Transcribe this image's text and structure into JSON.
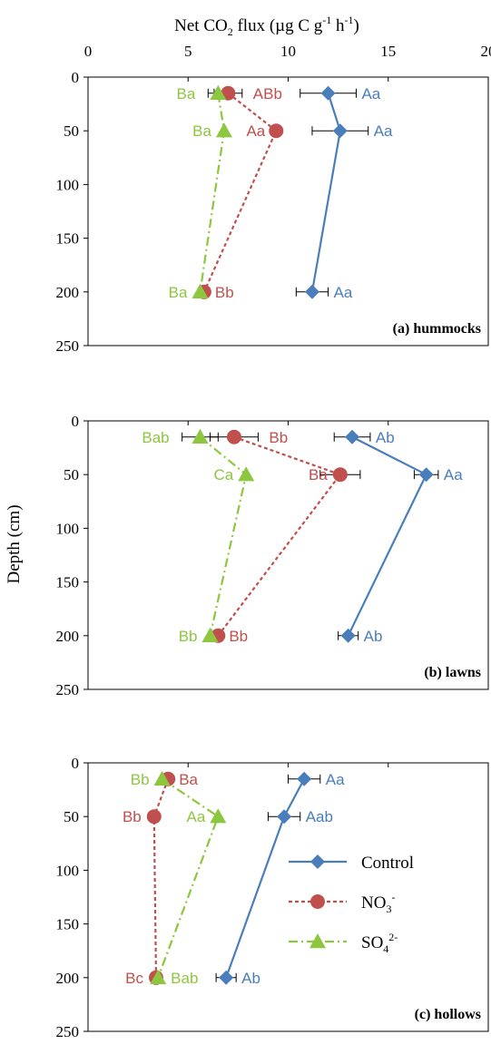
{
  "chart_data": {
    "type": "line",
    "x_axis": {
      "title_text": "Net CO",
      "title_sub": "2",
      "title_mid": " flux (µg C g",
      "title_sup1": "-1",
      "title_mid2": " h",
      "title_sup2": "-1",
      "title_end": ")",
      "ticks": [
        "0",
        "5",
        "10",
        "15",
        "20"
      ],
      "range": [
        0,
        20
      ]
    },
    "y_axis": {
      "title": "Depth (cm)",
      "ticks": [
        "0",
        "50",
        "100",
        "150",
        "200",
        "250"
      ],
      "range": [
        0,
        250
      ],
      "reversed": true
    },
    "legend": {
      "placement": "inside-lower-right-panel-c",
      "entries": [
        {
          "key": "control",
          "text": "Control",
          "sup": ""
        },
        {
          "key": "no3",
          "text": "NO",
          "sub": "3",
          "sup": "-"
        },
        {
          "key": "so4",
          "text": "SO",
          "sub": "4",
          "sup": "2-"
        }
      ]
    },
    "colors": {
      "control": "#4a7ebb",
      "no3": "#c0504d",
      "so4": "#8dc63f"
    },
    "panels": [
      {
        "label": "(a) hummocks",
        "series": [
          {
            "key": "control",
            "depths": [
              15,
              50,
              200
            ],
            "values": [
              12.0,
              12.6,
              11.2
            ],
            "errors": [
              1.4,
              1.4,
              0.8
            ],
            "labels": [
              "Aa",
              "Aa",
              "Aa"
            ]
          },
          {
            "key": "no3",
            "depths": [
              15,
              50,
              200
            ],
            "values": [
              7.0,
              9.4,
              5.8
            ],
            "errors": [
              0.7,
              0,
              0
            ],
            "labels": [
              "ABb",
              "Aa",
              "Bb"
            ]
          },
          {
            "key": "so4",
            "depths": [
              15,
              50,
              200
            ],
            "values": [
              6.5,
              6.8,
              5.6
            ],
            "errors": [
              0.5,
              0,
              0
            ],
            "labels": [
              "Ba",
              "Ba",
              "Ba"
            ]
          }
        ]
      },
      {
        "label": "(b) lawns",
        "series": [
          {
            "key": "control",
            "depths": [
              15,
              50,
              200
            ],
            "values": [
              13.2,
              16.9,
              13.0
            ],
            "errors": [
              0.9,
              0.6,
              0.5
            ],
            "labels": [
              "Ab",
              "Aa",
              "Ab"
            ]
          },
          {
            "key": "no3",
            "depths": [
              15,
              50,
              200
            ],
            "values": [
              7.3,
              12.6,
              6.5
            ],
            "errors": [
              1.2,
              1.0,
              0
            ],
            "labels": [
              "Bb",
              "Ba",
              "Bb"
            ]
          },
          {
            "key": "so4",
            "depths": [
              15,
              50,
              200
            ],
            "values": [
              5.6,
              7.9,
              6.1
            ],
            "errors": [
              0.9,
              0,
              0
            ],
            "labels": [
              "Bab",
              "Ca",
              "Bb"
            ]
          }
        ]
      },
      {
        "label": "(c) hollows",
        "series": [
          {
            "key": "control",
            "depths": [
              15,
              50,
              200
            ],
            "values": [
              10.8,
              9.8,
              6.9
            ],
            "errors": [
              0.8,
              0.8,
              0.5
            ],
            "labels": [
              "Aa",
              "Aab",
              "Ab"
            ]
          },
          {
            "key": "no3",
            "depths": [
              15,
              50,
              200
            ],
            "values": [
              4.0,
              3.3,
              3.4
            ],
            "errors": [
              0,
              0,
              0
            ],
            "labels": [
              "Ba",
              "Bb",
              "Bc"
            ]
          },
          {
            "key": "so4",
            "depths": [
              15,
              50,
              200
            ],
            "values": [
              3.7,
              6.5,
              3.5
            ],
            "errors": [
              0,
              0,
              0
            ],
            "labels": [
              "Bb",
              "Aa",
              "Bab"
            ]
          }
        ]
      }
    ]
  }
}
